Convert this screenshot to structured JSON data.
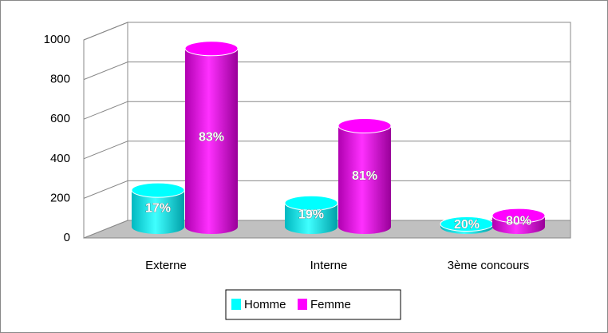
{
  "chart_data": {
    "type": "bar3d",
    "categories": [
      "Externe",
      "Interne",
      "3ème concours"
    ],
    "series": [
      {
        "name": "Homme",
        "color": "#00ffff",
        "values": [
          185,
          120,
          14
        ],
        "value_labels": [
          "17%",
          "19%",
          "20%"
        ]
      },
      {
        "name": "Femme",
        "color": "#ff00ff",
        "values": [
          900,
          510,
          56
        ],
        "value_labels": [
          "83%",
          "81%",
          "80%"
        ]
      }
    ],
    "ylim": [
      0,
      1000
    ],
    "yticks": [
      0,
      200,
      400,
      600,
      800,
      1000
    ],
    "grid": true
  }
}
